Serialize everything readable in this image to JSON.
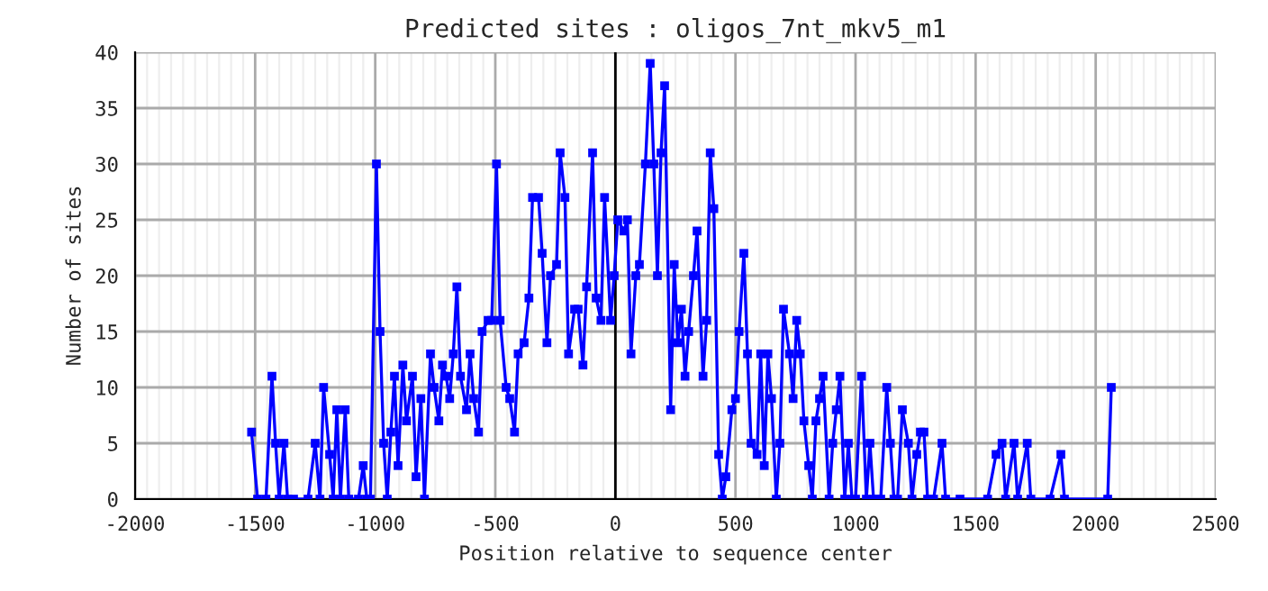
{
  "chart_data": {
    "type": "line",
    "title": "Predicted sites : oligos_7nt_mkv5_m1",
    "xlabel": "Position relative to sequence center",
    "ylabel": "Number of sites",
    "series": [
      {
        "color": "#0000ff",
        "x": [
          -1515,
          -1490,
          -1455,
          -1430,
          -1415,
          -1400,
          -1380,
          -1365,
          -1340,
          -1280,
          -1250,
          -1230,
          -1215,
          -1190,
          -1175,
          -1160,
          -1145,
          -1125,
          -1110,
          -1070,
          -1050,
          -1035,
          -1020,
          -995,
          -980,
          -965,
          -950,
          -935,
          -920,
          -905,
          -885,
          -870,
          -845,
          -830,
          -810,
          -795,
          -770,
          -755,
          -735,
          -720,
          -705,
          -690,
          -675,
          -660,
          -645,
          -620,
          -605,
          -590,
          -570,
          -555,
          -530,
          -515,
          -495,
          -480,
          -455,
          -440,
          -420,
          -405,
          -380,
          -360,
          -345,
          -320,
          -305,
          -285,
          -270,
          -245,
          -230,
          -210,
          -195,
          -170,
          -155,
          -135,
          -120,
          -95,
          -80,
          -60,
          -45,
          -20,
          -5,
          10,
          35,
          50,
          65,
          85,
          100,
          125,
          145,
          160,
          175,
          190,
          205,
          230,
          245,
          260,
          275,
          290,
          305,
          325,
          340,
          365,
          380,
          395,
          410,
          430,
          445,
          460,
          485,
          500,
          515,
          535,
          550,
          565,
          590,
          605,
          620,
          635,
          650,
          670,
          685,
          700,
          725,
          740,
          755,
          770,
          785,
          805,
          820,
          835,
          850,
          865,
          890,
          905,
          920,
          935,
          955,
          970,
          985,
          1000,
          1025,
          1045,
          1060,
          1075,
          1090,
          1105,
          1130,
          1145,
          1160,
          1175,
          1195,
          1220,
          1235,
          1255,
          1270,
          1285,
          1300,
          1325,
          1360,
          1375,
          1435,
          1550,
          1585,
          1610,
          1625,
          1660,
          1675,
          1715,
          1730,
          1810,
          1855,
          1870,
          2050,
          2065
        ],
        "values": [
          6,
          0,
          0,
          11,
          5,
          0,
          5,
          0,
          0,
          0,
          5,
          0,
          10,
          4,
          0,
          8,
          0,
          8,
          0,
          0,
          3,
          0,
          0,
          30,
          15,
          5,
          0,
          6,
          11,
          3,
          12,
          7,
          11,
          2,
          9,
          0,
          13,
          10,
          7,
          12,
          11,
          9,
          13,
          19,
          11,
          8,
          13,
          9,
          6,
          15,
          16,
          16,
          30,
          16,
          10,
          9,
          6,
          13,
          14,
          18,
          27,
          27,
          22,
          14,
          20,
          21,
          31,
          27,
          13,
          17,
          17,
          12,
          19,
          31,
          18,
          16,
          27,
          16,
          20,
          25,
          24,
          25,
          13,
          20,
          21,
          30,
          39,
          30,
          20,
          31,
          37,
          8,
          21,
          14,
          17,
          11,
          15,
          20,
          24,
          11,
          16,
          31,
          26,
          4,
          0,
          2,
          8,
          9,
          15,
          22,
          13,
          5,
          4,
          13,
          3,
          13,
          9,
          0,
          5,
          17,
          13,
          9,
          16,
          13,
          7,
          3,
          0,
          7,
          9,
          11,
          0,
          5,
          8,
          11,
          0,
          5,
          0,
          0,
          11,
          0,
          5,
          0,
          0,
          0,
          10,
          5,
          0,
          0,
          8,
          5,
          0,
          4,
          6,
          6,
          0,
          0,
          5,
          0,
          0,
          0,
          4,
          5,
          0,
          5,
          0,
          5,
          0,
          0,
          4,
          0,
          0,
          10
        ]
      }
    ],
    "ref_lines": [
      {
        "axis": "x",
        "value": 0,
        "color": "#000000"
      }
    ],
    "xlim": [
      -2000,
      2500
    ],
    "xticks": [
      -2000,
      -1500,
      -1000,
      -500,
      0,
      500,
      1000,
      1500,
      2000,
      2500
    ],
    "ylim": [
      0,
      40
    ],
    "yticks": [
      0,
      5,
      10,
      15,
      20,
      25,
      30,
      35,
      40
    ],
    "grid": true,
    "marker": "square",
    "line_style": "solid"
  }
}
